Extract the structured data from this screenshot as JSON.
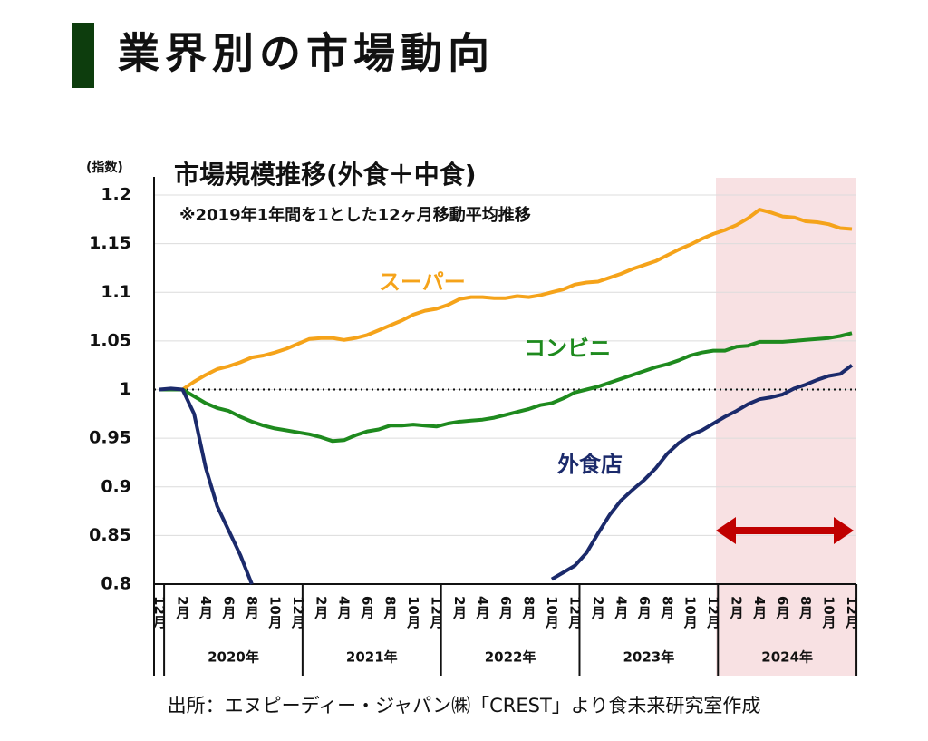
{
  "header": {
    "title": "業界別の市場動向"
  },
  "chart_data": {
    "type": "line",
    "title": "市場規模推移(外食＋中食)",
    "subtitle": "※2019年1年間を1とした12ヶ月移動平均推移",
    "y_label": "(指数)",
    "categories": [
      "12月",
      null,
      "2月",
      null,
      "4月",
      null,
      "6月",
      null,
      "8月",
      null,
      "10月",
      null,
      "12月",
      null,
      "2月",
      null,
      "4月",
      null,
      "6月",
      null,
      "8月",
      null,
      "10月",
      null,
      "12月",
      null,
      "2月",
      null,
      "4月",
      null,
      "6月",
      null,
      "8月",
      null,
      "10月",
      null,
      "12月",
      null,
      "2月",
      null,
      "4月",
      null,
      "6月",
      null,
      "8月",
      null,
      "10月",
      null,
      "12月",
      null,
      "2月",
      null,
      "4月",
      null,
      "6月",
      null,
      "8月",
      null,
      "10月",
      null,
      "12月"
    ],
    "years": [
      "2020年",
      "2021年",
      "2022年",
      "2023年",
      "2024年"
    ],
    "ylim": [
      0.8,
      1.2
    ],
    "yticks": [
      0.8,
      0.85,
      0.9,
      0.95,
      1,
      1.05,
      1.1,
      1.15,
      1.2
    ],
    "grid": true,
    "reference_line": 1,
    "series": [
      {
        "name": "スーパー",
        "color": "#f5a31a",
        "values": [
          1.0,
          1.0,
          1.0,
          1.008,
          1.015,
          1.021,
          1.024,
          1.028,
          1.033,
          1.035,
          1.038,
          1.042,
          1.047,
          1.052,
          1.053,
          1.053,
          1.051,
          1.053,
          1.056,
          1.061,
          1.066,
          1.071,
          1.077,
          1.081,
          1.083,
          1.087,
          1.093,
          1.095,
          1.095,
          1.094,
          1.094,
          1.096,
          1.095,
          1.097,
          1.1,
          1.103,
          1.108,
          1.11,
          1.111,
          1.115,
          1.119,
          1.124,
          1.128,
          1.132,
          1.138,
          1.144,
          1.149,
          1.155,
          1.16,
          1.164,
          1.169,
          1.176,
          1.185,
          1.182,
          1.178,
          1.177,
          1.173,
          1.172,
          1.17,
          1.166,
          1.165
        ]
      },
      {
        "name": "コンビニ",
        "color": "#1e8a1e",
        "values": [
          1.0,
          1.0,
          1.0,
          0.993,
          0.986,
          0.981,
          0.978,
          0.972,
          0.967,
          0.963,
          0.96,
          0.958,
          0.956,
          0.954,
          0.951,
          0.947,
          0.948,
          0.953,
          0.957,
          0.959,
          0.963,
          0.963,
          0.964,
          0.963,
          0.962,
          0.965,
          0.967,
          0.968,
          0.969,
          0.971,
          0.974,
          0.977,
          0.98,
          0.984,
          0.986,
          0.991,
          0.997,
          1.0,
          1.003,
          1.007,
          1.011,
          1.015,
          1.019,
          1.023,
          1.026,
          1.03,
          1.035,
          1.038,
          1.04,
          1.04,
          1.044,
          1.045,
          1.049,
          1.049,
          1.049,
          1.05,
          1.051,
          1.052,
          1.053,
          1.055,
          1.058
        ]
      },
      {
        "name": "外食店",
        "color": "#1b2a6b",
        "values": [
          1.0,
          1.001,
          1.0,
          0.975,
          0.92,
          0.88,
          0.855,
          0.83,
          0.8,
          null,
          null,
          null,
          null,
          null,
          null,
          null,
          null,
          null,
          null,
          null,
          null,
          null,
          null,
          null,
          null,
          null,
          null,
          null,
          null,
          null,
          null,
          null,
          null,
          null,
          0.805,
          0.812,
          0.819,
          0.832,
          0.852,
          0.871,
          0.886,
          0.897,
          0.907,
          0.919,
          0.934,
          0.945,
          0.953,
          0.958,
          0.965,
          0.972,
          0.978,
          0.985,
          0.99,
          0.992,
          0.995,
          1.001,
          1.005,
          1.01,
          1.014,
          1.016,
          1.025
        ]
      }
    ]
  },
  "footer": {
    "source": "出所：エヌピーディー・ジャパン㈱「CREST」より食未来研究室作成"
  }
}
